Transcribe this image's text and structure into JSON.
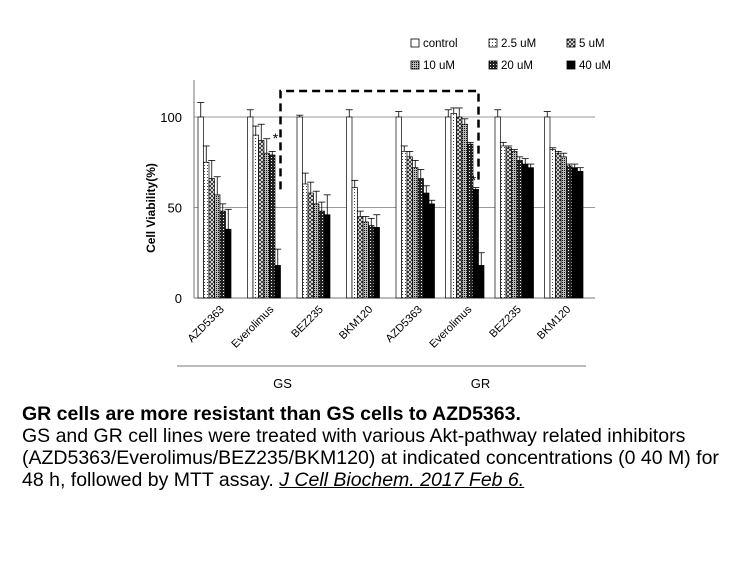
{
  "chart_data": {
    "type": "bar",
    "ylabel": "Cell Viability(%)",
    "ylim": [
      0,
      100
    ],
    "yticks": [
      0,
      50,
      100
    ],
    "grid": true,
    "legend_position": "top-right",
    "categories": [
      "AZD5363",
      "Everolimus",
      "BEZ235",
      "BKM120",
      "AZD5363",
      "Everolimus",
      "BEZ235",
      "BKM120"
    ],
    "groups": [
      {
        "label": "GS",
        "categories": [
          0,
          1,
          2,
          3
        ]
      },
      {
        "label": "GR",
        "categories": [
          4,
          5,
          6,
          7
        ]
      }
    ],
    "series": [
      {
        "name": "control",
        "pattern": "white",
        "values": [
          100,
          100,
          100,
          100,
          100,
          100,
          100,
          100
        ],
        "errors": [
          8,
          4,
          1,
          4,
          3,
          4,
          4,
          3
        ]
      },
      {
        "name": "2.5 uM",
        "pattern": "light-dots",
        "values": [
          75,
          90,
          63,
          61,
          81,
          102,
          84,
          82
        ],
        "errors": [
          9,
          5,
          6,
          4,
          3,
          3,
          2,
          1
        ]
      },
      {
        "name": "5 uM",
        "pattern": "diamond-grid",
        "values": [
          66,
          87,
          58,
          45,
          78,
          100,
          83,
          80
        ],
        "errors": [
          10,
          9,
          6,
          3,
          3,
          5,
          1,
          1
        ]
      },
      {
        "name": "10 uM",
        "pattern": "dense-grid",
        "values": [
          57,
          80,
          52,
          42,
          72,
          96,
          81,
          78
        ],
        "errors": [
          10,
          8,
          7,
          3,
          4,
          3,
          1,
          2
        ]
      },
      {
        "name": "20 uM",
        "pattern": "dark-dots",
        "values": [
          48,
          79,
          48,
          40,
          66,
          85,
          76,
          73
        ],
        "errors": [
          4,
          2,
          5,
          4,
          5,
          1,
          2,
          1
        ]
      },
      {
        "name": "40 uM",
        "pattern": "black",
        "values": [
          38,
          18,
          46,
          39,
          58,
          60,
          74,
          72
        ],
        "errors": [
          11,
          9,
          11,
          7,
          4,
          1,
          3,
          2
        ]
      },
      {
        "name": "",
        "pattern": "black",
        "values": [
          0,
          0,
          0,
          0,
          52,
          18,
          72,
          70
        ],
        "errors": [
          0,
          0,
          0,
          0,
          2,
          7,
          2,
          2
        ]
      }
    ],
    "annotations": [
      {
        "text": "*",
        "category": 1
      },
      {
        "text": "*",
        "category": 5
      }
    ],
    "comparison_bracket": {
      "from_category": 1,
      "to_category": 5,
      "style": "dashed"
    }
  },
  "caption": {
    "title": "GR cells are more resistant than GS cells to AZD5363.",
    "body": "GS and GR cell lines were treated with various Akt-pathway related inhibitors (AZD5363/Everolimus/BEZ235/BKM120) at indicated concentrations (0 40  M) for 48 h, followed by MTT assay.",
    "citation": "J Cell Biochem. 2017 Feb 6."
  }
}
